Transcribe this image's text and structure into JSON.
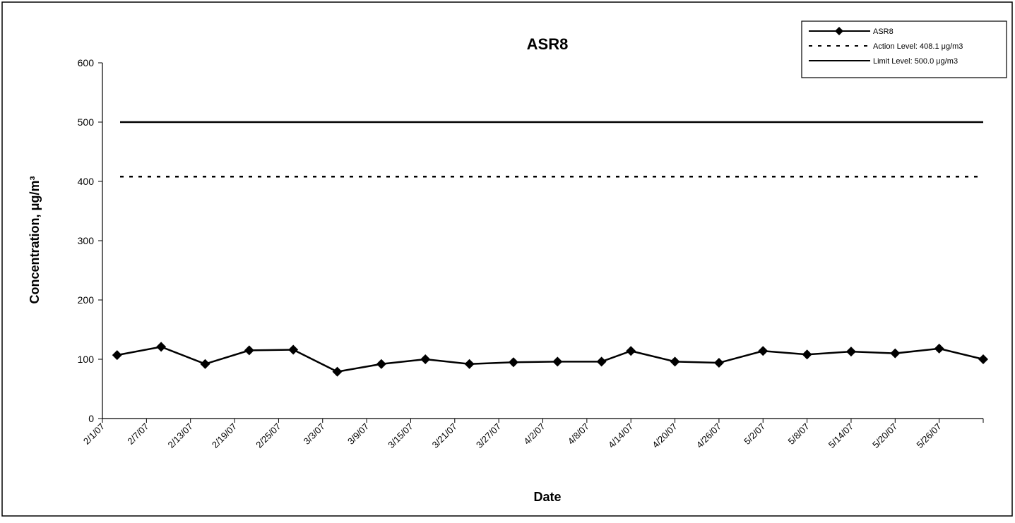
{
  "chart_data": {
    "type": "line",
    "title": "ASR8",
    "x_label": "Date",
    "y_label": "Concentration, μg/m³",
    "x": [
      "2/3/07",
      "2/9/07",
      "2/15/07",
      "2/21/07",
      "2/27/07",
      "3/5/07",
      "3/11/07",
      "3/17/07",
      "3/23/07",
      "3/29/07",
      "4/4/07",
      "4/10/07",
      "4/14/07",
      "4/20/07",
      "4/26/07",
      "5/2/07",
      "5/8/07",
      "5/14/07",
      "5/20/07",
      "5/26/07",
      "6/1/07"
    ],
    "series": [
      {
        "name": "ASR8",
        "color": "#000000",
        "marker": "diamond",
        "values": [
          107,
          121,
          92,
          115,
          116,
          79,
          92,
          100,
          92,
          95,
          96,
          96,
          114,
          96,
          94,
          114,
          108,
          113,
          110,
          118,
          100
        ]
      }
    ],
    "reference_lines": [
      {
        "name": "Action Level: 408.1 μg/m3",
        "value": 408.1,
        "style": "dashed",
        "color": "#000000"
      },
      {
        "name": "Limit Level: 500.0 μg/m3",
        "value": 500.0,
        "style": "solid",
        "color": "#000000"
      }
    ],
    "xlim": [
      "2/1/07",
      "6/1/07"
    ],
    "xticks": [
      "2/1/07",
      "2/7/07",
      "2/13/07",
      "2/19/07",
      "2/25/07",
      "3/3/07",
      "3/9/07",
      "3/15/07",
      "3/21/07",
      "3/27/07",
      "4/2/07",
      "4/8/07",
      "4/14/07",
      "4/20/07",
      "4/26/07",
      "5/2/07",
      "5/8/07",
      "5/14/07",
      "5/20/07",
      "5/26/07"
    ],
    "ylim": [
      0,
      600
    ],
    "yticks": [
      0,
      100,
      200,
      300,
      400,
      500,
      600
    ],
    "grid": false,
    "legend": "top-right"
  }
}
